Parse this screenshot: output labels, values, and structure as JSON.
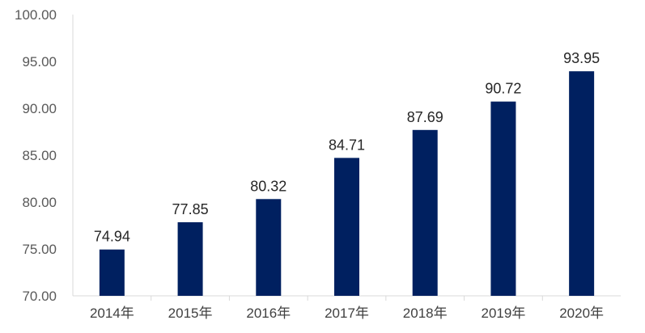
{
  "chart_data": {
    "type": "bar",
    "title": "",
    "xlabel": "",
    "ylabel": "",
    "categories": [
      "2014年",
      "2015年",
      "2016年",
      "2017年",
      "2018年",
      "2019年",
      "2020年"
    ],
    "values": [
      74.94,
      77.85,
      80.32,
      84.71,
      87.69,
      90.72,
      93.95
    ],
    "value_labels": [
      "74.94",
      "77.85",
      "80.32",
      "84.71",
      "87.69",
      "90.72",
      "93.95"
    ],
    "ylim": [
      70,
      100
    ],
    "y_ticks": [
      70,
      75,
      80,
      85,
      90,
      95,
      100
    ],
    "y_tick_labels": [
      "70.00",
      "75.00",
      "80.00",
      "85.00",
      "90.00",
      "95.00",
      "100.00"
    ],
    "grid": false,
    "legend": "none",
    "bar_color": "#002060"
  }
}
